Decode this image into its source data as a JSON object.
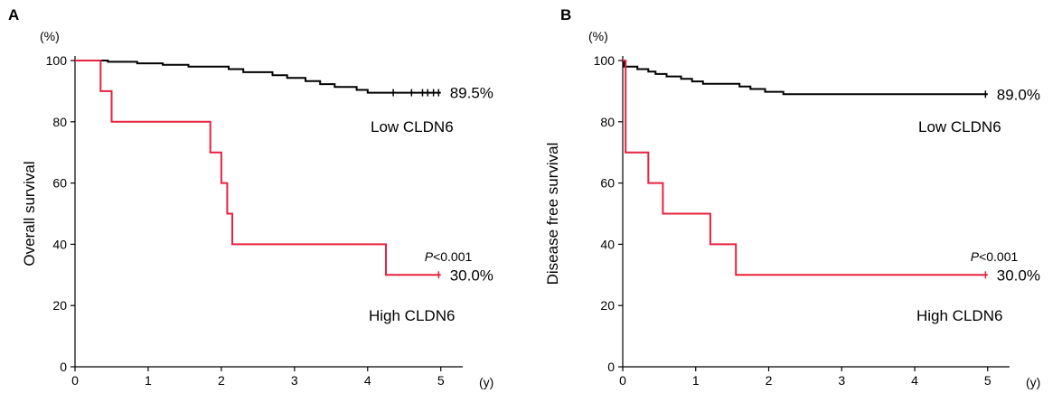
{
  "chart_data": [
    {
      "type": "line",
      "panel_letter": "A",
      "ylabel": "Overall survival",
      "y_unit": "(%)",
      "x_unit": "(y)",
      "xlim": [
        0,
        5.3
      ],
      "ylim": [
        0,
        100
      ],
      "x_ticks": [
        "0",
        "1",
        "2",
        "3",
        "4",
        "5"
      ],
      "y_ticks": [
        "0",
        "20",
        "40",
        "60",
        "80",
        "100"
      ],
      "grid": false,
      "p_value": {
        "italic": "P",
        "rest": "<0.001"
      },
      "series": [
        {
          "name": "Low CLDN6",
          "color": "#000000",
          "end_label": "89.5%",
          "steps": [
            [
              0,
              100
            ],
            [
              0.45,
              100
            ],
            [
              0.45,
              99.6
            ],
            [
              0.85,
              99.6
            ],
            [
              0.85,
              99.1
            ],
            [
              1.2,
              99.1
            ],
            [
              1.2,
              98.6
            ],
            [
              1.55,
              98.6
            ],
            [
              1.55,
              98
            ],
            [
              2.1,
              98
            ],
            [
              2.1,
              97.2
            ],
            [
              2.3,
              97.2
            ],
            [
              2.3,
              96.2
            ],
            [
              2.7,
              96.2
            ],
            [
              2.7,
              95.2
            ],
            [
              2.9,
              95.2
            ],
            [
              2.9,
              94.3
            ],
            [
              3.15,
              94.3
            ],
            [
              3.15,
              93.3
            ],
            [
              3.35,
              93.3
            ],
            [
              3.35,
              92.3
            ],
            [
              3.55,
              92.3
            ],
            [
              3.55,
              91.4
            ],
            [
              3.85,
              91.4
            ],
            [
              3.85,
              90.4
            ],
            [
              4.0,
              90.4
            ],
            [
              4.0,
              89.5
            ],
            [
              5.0,
              89.5
            ]
          ],
          "censor_x": [
            4.35,
            4.6,
            4.75,
            4.82,
            4.9,
            4.97
          ]
        },
        {
          "name": "High CLDN6",
          "color": "#e6223f",
          "end_label": "30.0%",
          "steps": [
            [
              0,
              100
            ],
            [
              0.35,
              100
            ],
            [
              0.35,
              90
            ],
            [
              0.5,
              90
            ],
            [
              0.5,
              80
            ],
            [
              1.85,
              80
            ],
            [
              1.85,
              70
            ],
            [
              2.0,
              70
            ],
            [
              2.0,
              60
            ],
            [
              2.08,
              60
            ],
            [
              2.08,
              50
            ],
            [
              2.15,
              50
            ],
            [
              2.15,
              40
            ],
            [
              4.25,
              40
            ],
            [
              4.25,
              30
            ],
            [
              5.0,
              30
            ]
          ],
          "censor_x": [
            4.97
          ]
        }
      ]
    },
    {
      "type": "line",
      "panel_letter": "B",
      "ylabel": "Disease free survival",
      "y_unit": "(%)",
      "x_unit": "(y)",
      "xlim": [
        0,
        5.3
      ],
      "ylim": [
        0,
        100
      ],
      "x_ticks": [
        "0",
        "1",
        "2",
        "3",
        "4",
        "5"
      ],
      "y_ticks": [
        "0",
        "20",
        "40",
        "60",
        "80",
        "100"
      ],
      "grid": false,
      "p_value": {
        "italic": "P",
        "rest": "<0.001"
      },
      "series": [
        {
          "name": "Low CLDN6",
          "color": "#000000",
          "end_label": "89.0%",
          "steps": [
            [
              0,
              100
            ],
            [
              0.02,
              100
            ],
            [
              0.02,
              98
            ],
            [
              0.2,
              98
            ],
            [
              0.2,
              97.2
            ],
            [
              0.35,
              97.2
            ],
            [
              0.35,
              96.4
            ],
            [
              0.45,
              96.4
            ],
            [
              0.45,
              95.6
            ],
            [
              0.6,
              95.6
            ],
            [
              0.6,
              94.8
            ],
            [
              0.8,
              94.8
            ],
            [
              0.8,
              94
            ],
            [
              0.95,
              94
            ],
            [
              0.95,
              93.2
            ],
            [
              1.1,
              93.2
            ],
            [
              1.1,
              92.4
            ],
            [
              1.6,
              92.4
            ],
            [
              1.6,
              91.5
            ],
            [
              1.75,
              91.5
            ],
            [
              1.75,
              90.7
            ],
            [
              1.95,
              90.7
            ],
            [
              1.95,
              89.8
            ],
            [
              2.2,
              89.8
            ],
            [
              2.2,
              89
            ],
            [
              5.0,
              89
            ]
          ],
          "censor_x": [
            4.97
          ]
        },
        {
          "name": "High CLDN6",
          "color": "#e6223f",
          "end_label": "30.0%",
          "steps": [
            [
              0,
              100
            ],
            [
              0.04,
              100
            ],
            [
              0.04,
              70
            ],
            [
              0.35,
              70
            ],
            [
              0.35,
              60
            ],
            [
              0.55,
              60
            ],
            [
              0.55,
              50
            ],
            [
              1.2,
              50
            ],
            [
              1.2,
              40
            ],
            [
              1.55,
              40
            ],
            [
              1.55,
              30
            ],
            [
              5.0,
              30
            ]
          ],
          "censor_x": [
            4.97
          ]
        }
      ]
    }
  ]
}
